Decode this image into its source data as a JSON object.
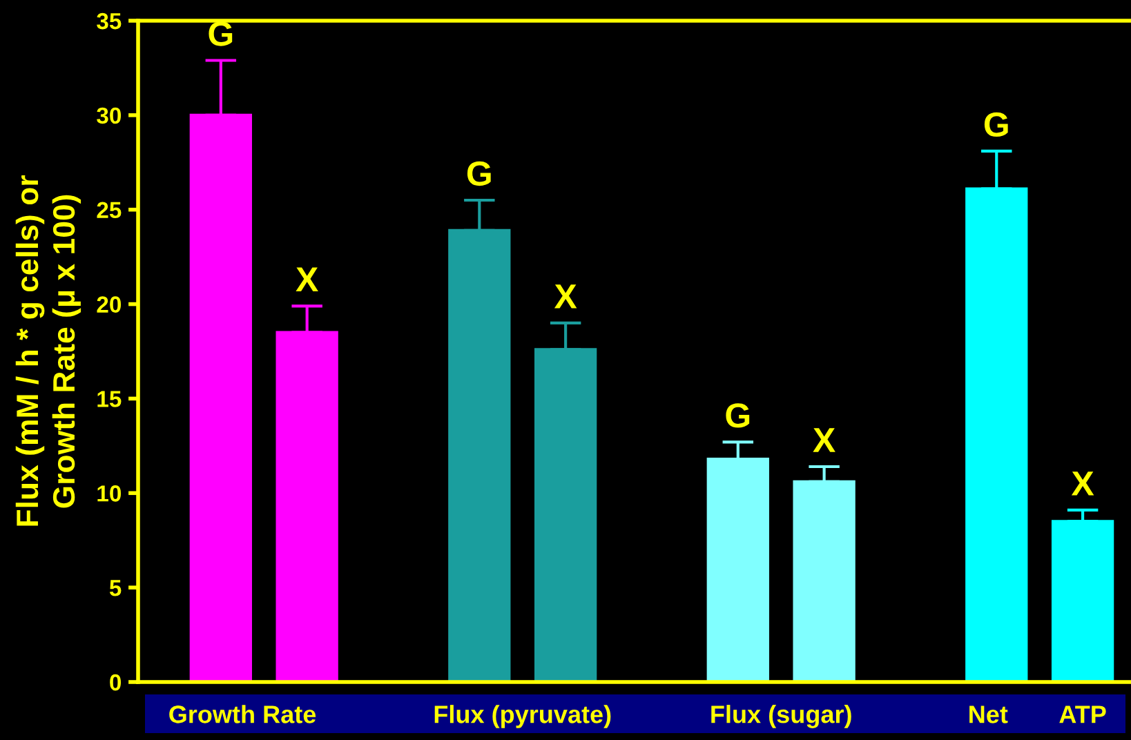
{
  "chart_data": {
    "type": "bar",
    "ylabel": "Flux (mM / h * g cells) or\nGrowth Rate (μ x 100)",
    "categories": [
      "G",
      "X",
      null,
      "G",
      "X",
      null,
      "G",
      "X",
      null,
      "G",
      "X"
    ],
    "values": [
      30.0,
      18.5,
      null,
      23.9,
      17.6,
      null,
      11.8,
      10.6,
      null,
      26.1,
      8.5
    ],
    "errors": [
      [
        30.0,
        32.9
      ],
      [
        18.5,
        19.9
      ],
      null,
      [
        23.9,
        25.5
      ],
      [
        17.6,
        19.0
      ],
      null,
      [
        11.8,
        12.7
      ],
      [
        10.6,
        11.4
      ],
      null,
      [
        26.1,
        28.1
      ],
      [
        8.5,
        9.1
      ]
    ],
    "colors": [
      "#ff00ff",
      "#ff00ff",
      null,
      "#1a9e9e",
      "#1a9e9e",
      null,
      "#80ffff",
      "#80ffff",
      null,
      "#00ffff",
      "#00ffff"
    ],
    "ylim": [
      0,
      35
    ],
    "yticks": [
      0,
      5,
      10,
      15,
      20,
      25,
      30,
      35
    ],
    "grid": false,
    "legend": false,
    "annotations": [
      "Growth Rate",
      "Flux (pyruvate)",
      "Flux (sugar)",
      "Net",
      "ATP"
    ]
  }
}
